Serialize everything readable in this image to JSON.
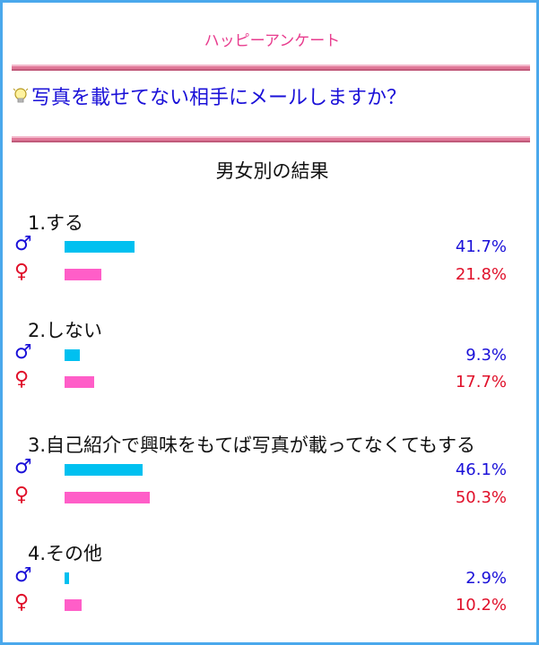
{
  "logo_text": "ハッピーアンケート",
  "question": "写真を載せてない相手にメールしますか？",
  "subtitle": "男女別の結果",
  "symbols": {
    "male": "♂",
    "female": "♀"
  },
  "colors": {
    "border": "#4aa8ec",
    "logo": "#e83c8e",
    "question": "#1a10d8",
    "male_bar": "#00c0f0",
    "female_bar": "#ff5ec8",
    "male_text": "#1a10d8",
    "female_text": "#e0102a"
  },
  "icons": {
    "question": "lightbulb-icon"
  },
  "options": [
    {
      "label": "1.する",
      "male_value": 41.7,
      "male_pct": "41.7%",
      "female_value": 21.8,
      "female_pct": "21.8%"
    },
    {
      "label": "2.しない",
      "male_value": 9.3,
      "male_pct": "9.3%",
      "female_value": 17.7,
      "female_pct": "17.7%"
    },
    {
      "label": "3.自己紹介で興味をもてば写真が載ってなくてもする",
      "male_value": 46.1,
      "male_pct": "46.1%",
      "female_value": 50.3,
      "female_pct": "50.3%"
    },
    {
      "label": "4.その他",
      "male_value": 2.9,
      "male_pct": "2.9%",
      "female_value": 10.2,
      "female_pct": "10.2%"
    }
  ]
}
